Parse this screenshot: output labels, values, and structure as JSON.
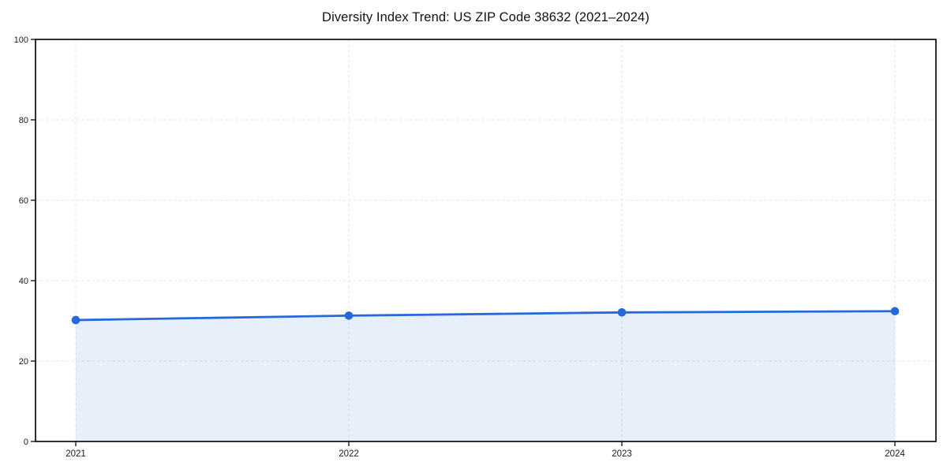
{
  "chart_data": {
    "type": "area",
    "title": "Diversity Index Trend: US ZIP Code 38632 (2021–2024)",
    "categories": [
      "2021",
      "2022",
      "2023",
      "2024"
    ],
    "series": [
      {
        "name": "Diversity Index",
        "values": [
          30.2,
          31.3,
          32.1,
          32.4
        ]
      }
    ],
    "xlabel": "",
    "ylabel": "",
    "ylim": [
      0,
      100
    ],
    "yticks": [
      0,
      20,
      40,
      60,
      80,
      100
    ],
    "grid": true,
    "grid_style": "dashed",
    "legend_position": "none",
    "marker": "circle",
    "colors": {
      "line": "#2569db",
      "marker": "#2569db",
      "fill": "rgba(37,105,219,0.11)",
      "grid": "#e3e3e3",
      "spine": "#1a1a1a",
      "tick_label": "#1a1a1a",
      "title": "#111111",
      "background": "#ffffff"
    }
  }
}
